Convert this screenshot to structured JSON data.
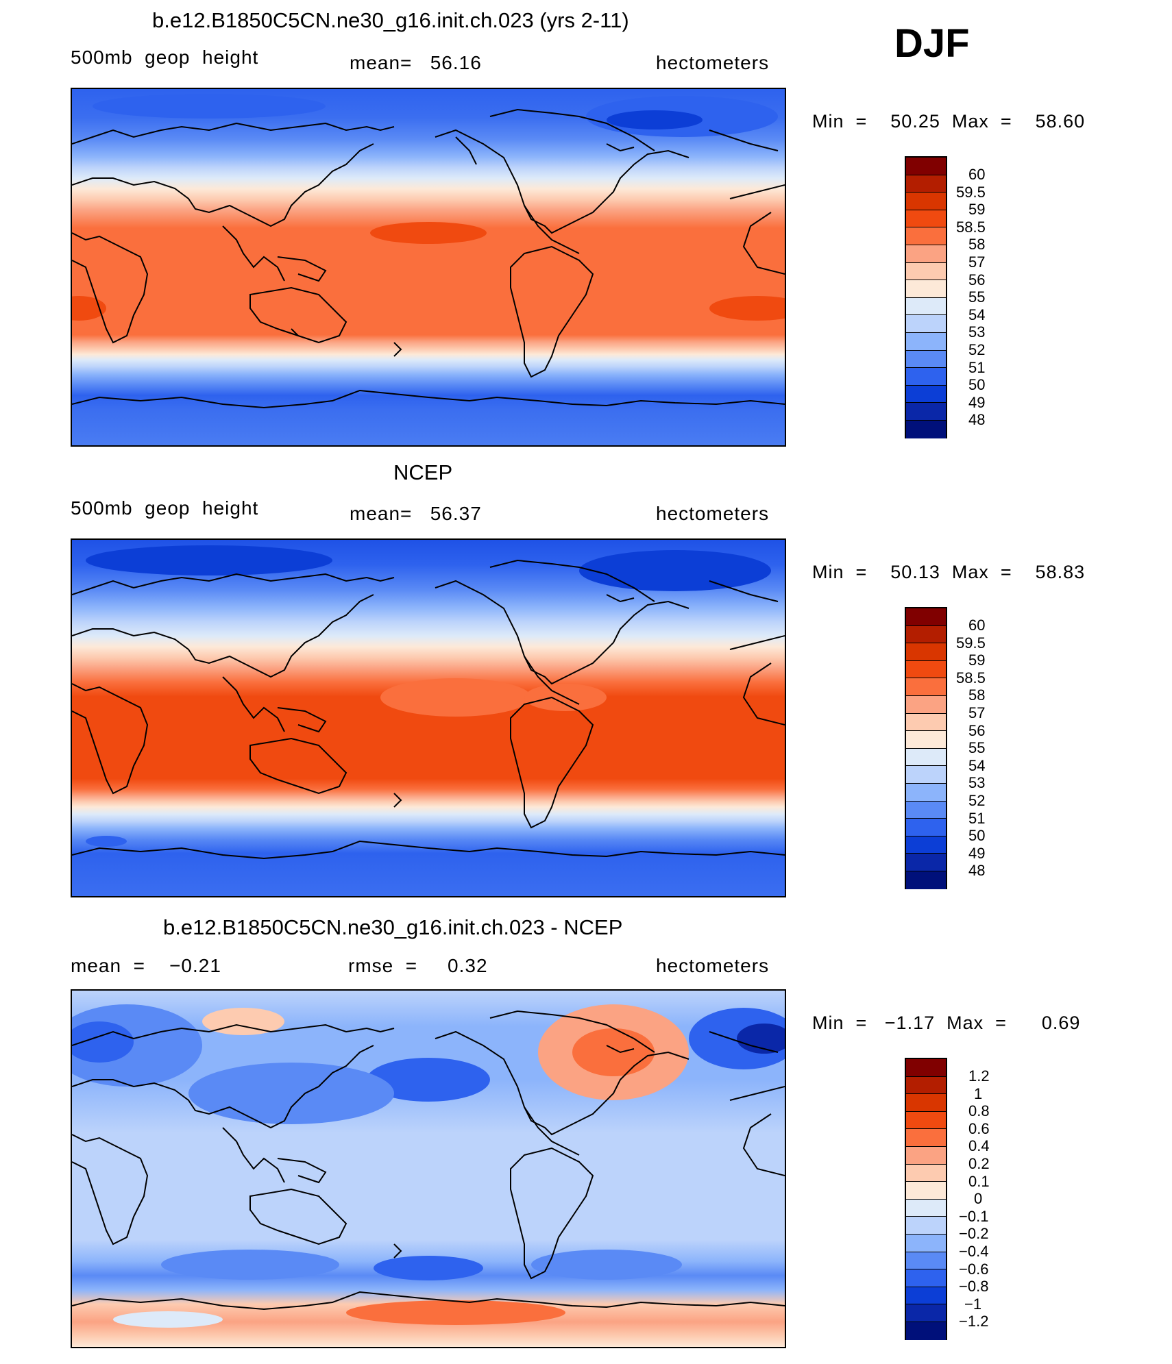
{
  "header": {
    "season": "DJF"
  },
  "panels": [
    {
      "title": "b.e12.B1850C5CN.ne30_g16.init.ch.023 (yrs 2-11)",
      "left_label": "500mb  geop  height",
      "mid_label": "mean=   56.16",
      "right_label": "hectometers",
      "min_max": "Min  =    50.25  Max  =    58.60",
      "colorbar_labels": [
        "60",
        "59.5",
        "59",
        "58.5",
        "58",
        "57",
        "56",
        "55",
        "54",
        "53",
        "52",
        "51",
        "50",
        "49",
        "48"
      ]
    },
    {
      "title": "NCEP",
      "left_label": "500mb  geop  height",
      "mid_label": "mean=   56.37",
      "right_label": "hectometers",
      "min_max": "Min  =    50.13  Max  =    58.83",
      "colorbar_labels": [
        "60",
        "59.5",
        "59",
        "58.5",
        "58",
        "57",
        "56",
        "55",
        "54",
        "53",
        "52",
        "51",
        "50",
        "49",
        "48"
      ]
    },
    {
      "title": "b.e12.B1850C5CN.ne30_g16.init.ch.023 - NCEP",
      "left_label": "mean  =    −0.21",
      "mid_label": "rmse  =     0.32",
      "right_label": "hectometers",
      "min_max": "Min  =   −1.17  Max  =      0.69",
      "colorbar_labels": [
        "1.2",
        "1",
        "0.8",
        "0.6",
        "0.4",
        "0.2",
        "0.1",
        "0",
        "−0.1",
        "−0.2",
        "−0.4",
        "−0.6",
        "−0.8",
        "−1",
        "−1.2"
      ]
    }
  ],
  "chart_data": [
    {
      "type": "heatmap",
      "title": "b.e12.B1850C5CN.ne30_g16.init.ch.023 (yrs 2-11)",
      "variable": "500mb geop height",
      "units": "hectometers",
      "mean": 56.16,
      "min": 50.25,
      "max": 58.6,
      "levels": [
        48,
        49,
        50,
        51,
        52,
        53,
        54,
        55,
        56,
        57,
        58,
        58.5,
        59,
        59.5,
        60
      ]
    },
    {
      "type": "heatmap",
      "title": "NCEP",
      "variable": "500mb geop height",
      "units": "hectometers",
      "mean": 56.37,
      "min": 50.13,
      "max": 58.83,
      "levels": [
        48,
        49,
        50,
        51,
        52,
        53,
        54,
        55,
        56,
        57,
        58,
        58.5,
        59,
        59.5,
        60
      ]
    },
    {
      "type": "heatmap",
      "title": "b.e12.B1850C5CN.ne30_g16.init.ch.023 - NCEP",
      "units": "hectometers",
      "mean": -0.21,
      "rmse": 0.32,
      "min": -1.17,
      "max": 0.69,
      "levels": [
        -1.2,
        -1,
        -0.8,
        -0.6,
        -0.4,
        -0.2,
        -0.1,
        0,
        0.1,
        0.2,
        0.4,
        0.6,
        0.8,
        1,
        1.2
      ]
    }
  ],
  "colors": {
    "scale": [
      "#800000",
      "#b31e00",
      "#d93600",
      "#f04a10",
      "#fa6f3d",
      "#fba383",
      "#fdcbb0",
      "#fde9d8",
      "#ddeaf9",
      "#bcd3fb",
      "#8cb4fb",
      "#5a8af5",
      "#2e62ee",
      "#0c3ed6",
      "#0a27a8",
      "#00107a"
    ]
  }
}
